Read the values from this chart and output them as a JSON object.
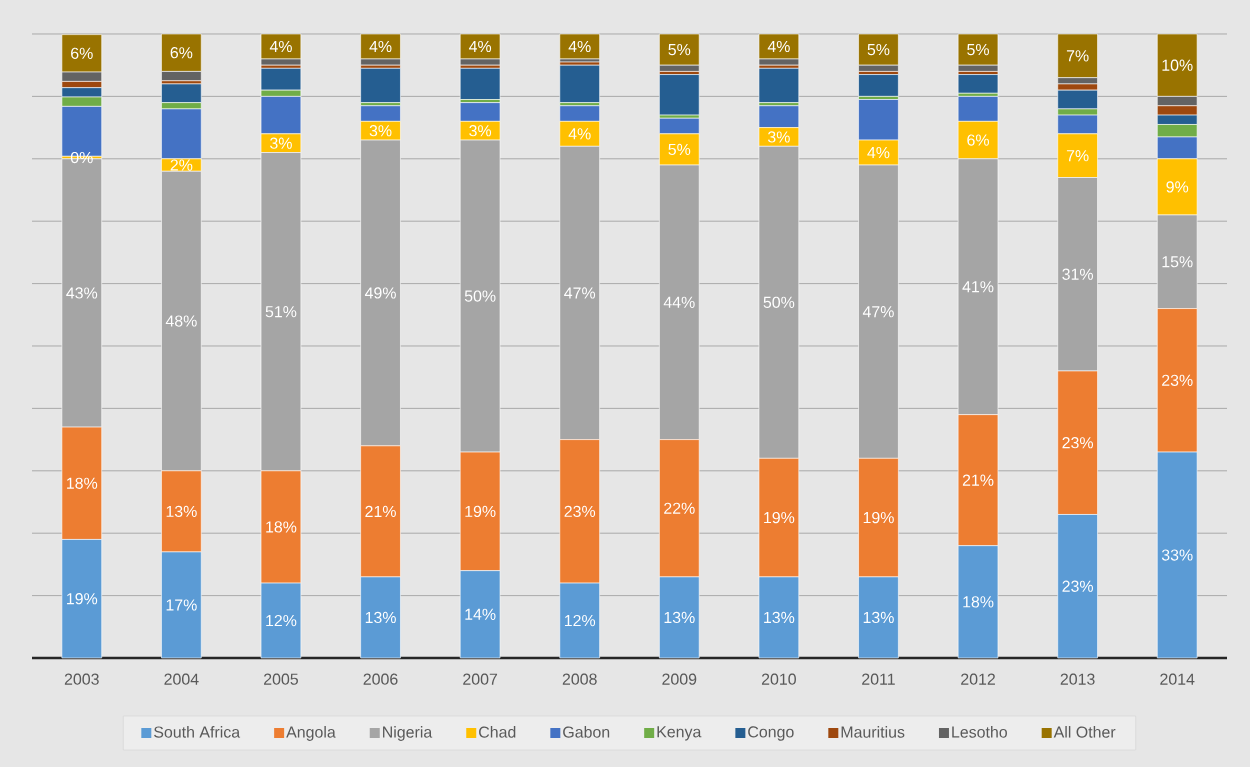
{
  "chart_data": {
    "type": "bar",
    "stacked": true,
    "categories": [
      "2003",
      "2004",
      "2005",
      "2006",
      "2007",
      "2008",
      "2009",
      "2010",
      "2011",
      "2012",
      "2013",
      "2014"
    ],
    "series": [
      {
        "name": "South Africa",
        "color": "#5b9bd5",
        "values": [
          19,
          17,
          12,
          13,
          14,
          12,
          13,
          13,
          13,
          18,
          23,
          33
        ],
        "value_labels": [
          "19%",
          "17%",
          "12%",
          "13%",
          "14%",
          "12%",
          "13%",
          "13%",
          "13%",
          "18%",
          "23%",
          "33%"
        ]
      },
      {
        "name": "Angola",
        "color": "#ed7d31",
        "values": [
          18,
          13,
          18,
          21,
          19,
          23,
          22,
          19,
          19,
          21,
          23,
          23
        ],
        "value_labels": [
          "18%",
          "13%",
          "18%",
          "21%",
          "19%",
          "23%",
          "22%",
          "19%",
          "19%",
          "21%",
          "23%",
          "23%"
        ]
      },
      {
        "name": "Nigeria",
        "color": "#a5a5a5",
        "values": [
          43,
          48,
          51,
          49,
          50,
          47,
          44,
          50,
          47,
          41,
          31,
          15
        ],
        "value_labels": [
          "43%",
          "48%",
          "51%",
          "49%",
          "50%",
          "47%",
          "44%",
          "50%",
          "47%",
          "41%",
          "31%",
          "15%"
        ]
      },
      {
        "name": "Chad",
        "color": "#ffc000",
        "values": [
          0.4,
          2,
          3,
          3,
          3,
          4,
          5,
          3,
          4,
          6,
          7,
          9
        ],
        "value_labels": [
          "0%",
          "2%",
          "3%",
          "3%",
          "3%",
          "4%",
          "5%",
          "3%",
          "4%",
          "6%",
          "7%",
          "9%"
        ]
      },
      {
        "name": "Gabon",
        "color": "#4472c4",
        "values": [
          8,
          8,
          6,
          2.5,
          3,
          2.5,
          2.5,
          3.5,
          6.5,
          4,
          3,
          3.5
        ]
      },
      {
        "name": "Kenya",
        "color": "#70ad47",
        "values": [
          1.5,
          1,
          1,
          0.5,
          0.5,
          0.5,
          0.5,
          0.5,
          0.5,
          0.5,
          1,
          2
        ]
      },
      {
        "name": "Congo",
        "color": "#255e91",
        "values": [
          1.5,
          3,
          3.5,
          5.5,
          5,
          6,
          6.5,
          5.5,
          3.5,
          3,
          3,
          1.5
        ]
      },
      {
        "name": "Mauritius",
        "color": "#9e480e",
        "values": [
          1,
          0.5,
          0.5,
          0.5,
          0.5,
          0.5,
          0.5,
          0.5,
          0.5,
          0.5,
          1,
          1.5
        ]
      },
      {
        "name": "Lesotho",
        "color": "#636363",
        "values": [
          1.5,
          1.5,
          1,
          1,
          1,
          0.5,
          1,
          1,
          1,
          1,
          1,
          1.5
        ]
      },
      {
        "name": "All Other",
        "color": "#997300",
        "values": [
          6,
          6,
          4,
          4,
          4,
          4,
          5,
          4,
          5,
          5,
          7,
          10
        ],
        "value_labels": [
          "6%",
          "6%",
          "4%",
          "4%",
          "4%",
          "4%",
          "5%",
          "4%",
          "5%",
          "5%",
          "7%",
          "10%"
        ]
      }
    ],
    "ylim": [
      0,
      100
    ],
    "yticks": [
      {
        "value": 0,
        "label": null
      },
      {
        "value": 10,
        "label": null
      },
      {
        "value": 20,
        "label": null
      },
      {
        "value": 30,
        "label": null
      },
      {
        "value": 40,
        "label": null
      },
      {
        "value": 50,
        "label": null
      },
      {
        "value": 60,
        "label": null
      },
      {
        "value": 70,
        "label": null
      },
      {
        "value": 80,
        "label": null
      },
      {
        "value": 90,
        "label": null
      },
      {
        "value": 100,
        "label": null
      }
    ],
    "grid": "y",
    "legend": "bottom",
    "tick_labels": "x"
  }
}
